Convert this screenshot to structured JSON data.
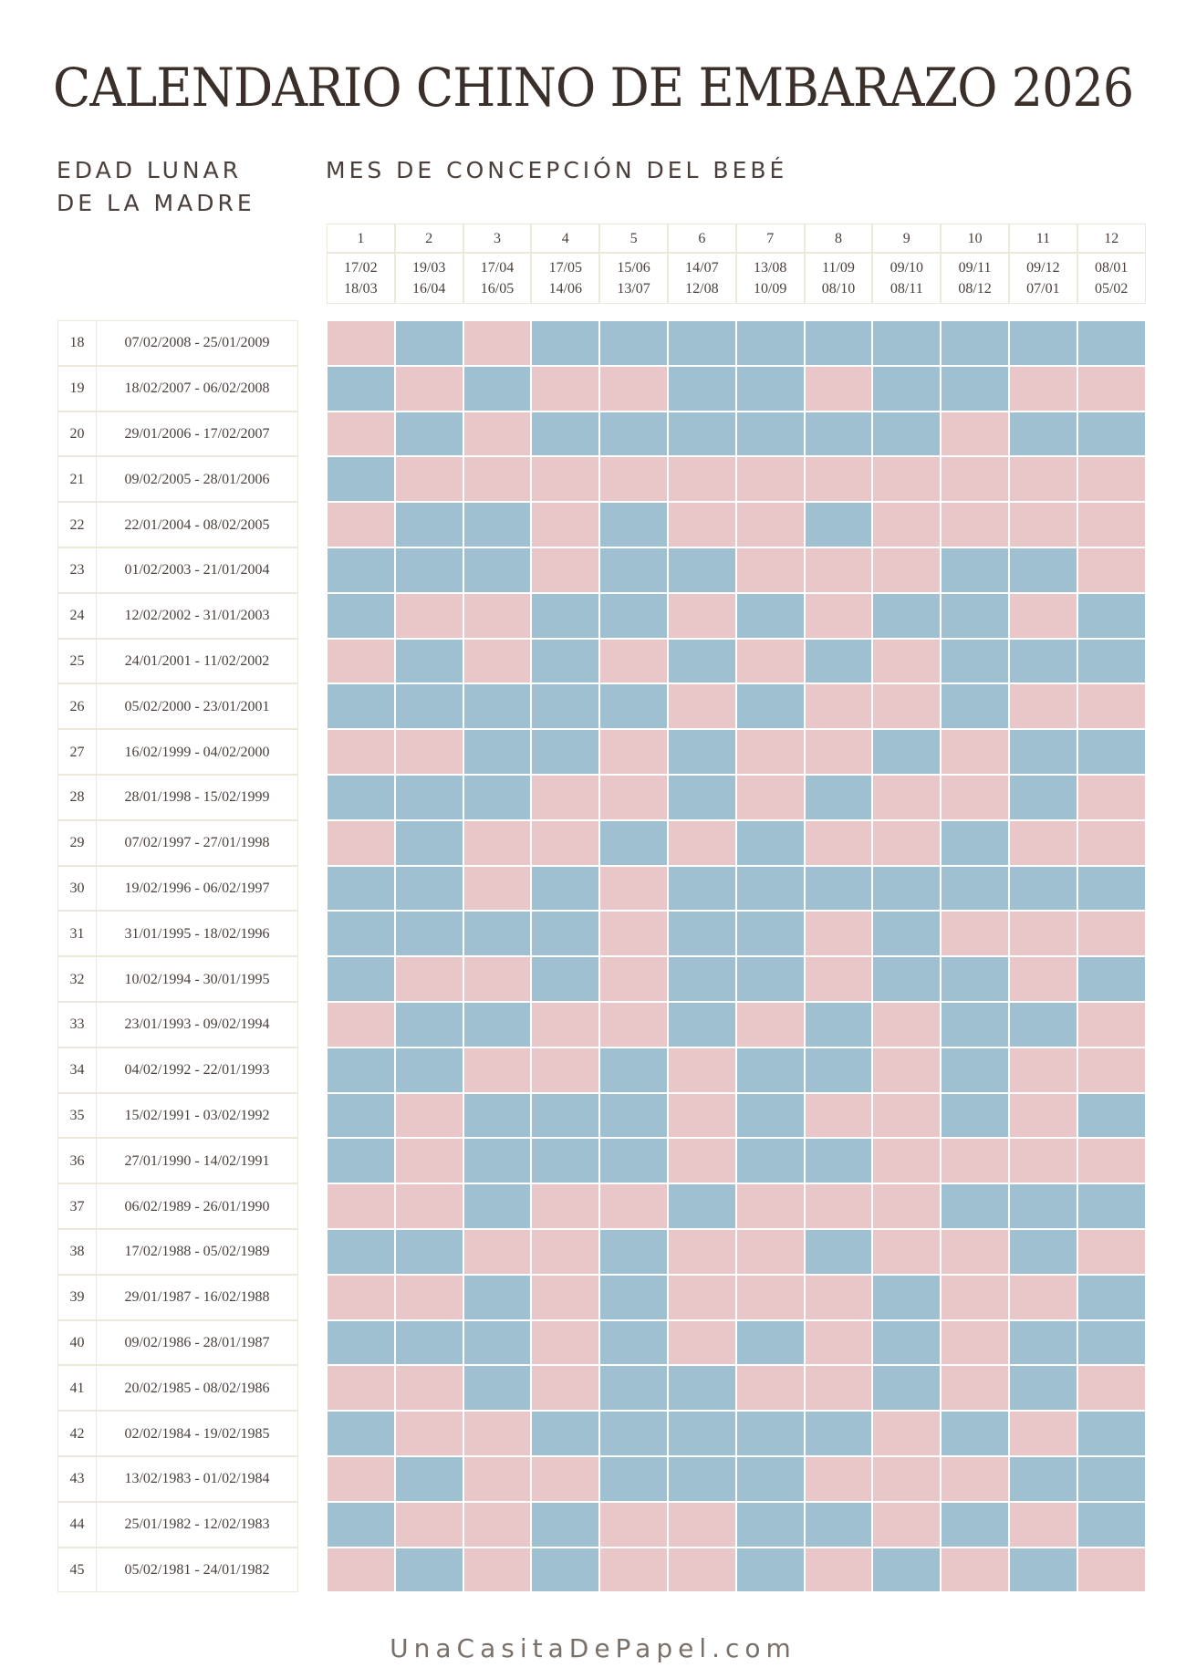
{
  "title": "CALENDARIO CHINO DE EMBARAZO 2026",
  "left_header": [
    "EDAD LUNAR",
    "DE LA MADRE"
  ],
  "column_header": "MES DE CONCEPCIÓN DEL BEBÉ",
  "palette": {
    "P": "#e9c6c8",
    "B": "#9fc0d0"
  },
  "months": [
    {
      "number": "1",
      "start": "17/02",
      "end": "18/03"
    },
    {
      "number": "2",
      "start": "19/03",
      "end": "16/04"
    },
    {
      "number": "3",
      "start": "17/04",
      "end": "16/05"
    },
    {
      "number": "4",
      "start": "17/05",
      "end": "14/06"
    },
    {
      "number": "5",
      "start": "15/06",
      "end": "13/07"
    },
    {
      "number": "6",
      "start": "14/07",
      "end": "12/08"
    },
    {
      "number": "7",
      "start": "13/08",
      "end": "10/09"
    },
    {
      "number": "8",
      "start": "11/09",
      "end": "08/10"
    },
    {
      "number": "9",
      "start": "09/10",
      "end": "08/11"
    },
    {
      "number": "10",
      "start": "09/11",
      "end": "08/12"
    },
    {
      "number": "11",
      "start": "09/12",
      "end": "07/01"
    },
    {
      "number": "12",
      "start": "08/01",
      "end": "05/02"
    }
  ],
  "rows": [
    {
      "age": "18",
      "range": "07/02/2008 - 25/01/2009",
      "cells": "PBPBBBBBBBBB"
    },
    {
      "age": "19",
      "range": "18/02/2007 - 06/02/2008",
      "cells": "BPBPPBBPBBPP"
    },
    {
      "age": "20",
      "range": "29/01/2006 - 17/02/2007",
      "cells": "PBPBBBBBBPBB"
    },
    {
      "age": "21",
      "range": "09/02/2005 - 28/01/2006",
      "cells": "BPPPPPPPPPPP"
    },
    {
      "age": "22",
      "range": "22/01/2004 - 08/02/2005",
      "cells": "PBBPBPPBPPPP"
    },
    {
      "age": "23",
      "range": "01/02/2003 - 21/01/2004",
      "cells": "BBBPBBPPPBBP"
    },
    {
      "age": "24",
      "range": "12/02/2002 - 31/01/2003",
      "cells": "BPPBBPBPBBPB"
    },
    {
      "age": "25",
      "range": "24/01/2001 - 11/02/2002",
      "cells": "PBPBPBPBPBBB"
    },
    {
      "age": "26",
      "range": "05/02/2000 - 23/01/2001",
      "cells": "BBBBBPBPPBPP"
    },
    {
      "age": "27",
      "range": "16/02/1999 - 04/02/2000",
      "cells": "PPBBPBPPBPBB"
    },
    {
      "age": "28",
      "range": "28/01/1998 - 15/02/1999",
      "cells": "BBBPPBPBPPBP"
    },
    {
      "age": "29",
      "range": "07/02/1997 - 27/01/1998",
      "cells": "PBPPBPBPPBPP"
    },
    {
      "age": "30",
      "range": "19/02/1996 - 06/02/1997",
      "cells": "BBPBPBBBBBBB"
    },
    {
      "age": "31",
      "range": "31/01/1995 - 18/02/1996",
      "cells": "BBBBPBBPBPPP"
    },
    {
      "age": "32",
      "range": "10/02/1994 - 30/01/1995",
      "cells": "BPPBPBBPBBPB"
    },
    {
      "age": "33",
      "range": "23/01/1993 - 09/02/1994",
      "cells": "PBBPPBPBPBBP"
    },
    {
      "age": "34",
      "range": "04/02/1992 - 22/01/1993",
      "cells": "BBPPBPBBPBPP"
    },
    {
      "age": "35",
      "range": "15/02/1991 - 03/02/1992",
      "cells": "BPBBBPBPPBPB"
    },
    {
      "age": "36",
      "range": "27/01/1990 - 14/02/1991",
      "cells": "BPBBBPBBPPPP"
    },
    {
      "age": "37",
      "range": "06/02/1989 - 26/01/1990",
      "cells": "PPBPPBPPPBBB"
    },
    {
      "age": "38",
      "range": "17/02/1988 - 05/02/1989",
      "cells": "BBPPBPPBPPBP"
    },
    {
      "age": "39",
      "range": "29/01/1987 - 16/02/1988",
      "cells": "PPBPBPPPBPPB"
    },
    {
      "age": "40",
      "range": "09/02/1986 - 28/01/1987",
      "cells": "BBBPBPBPBPBB"
    },
    {
      "age": "41",
      "range": "20/02/1985 - 08/02/1986",
      "cells": "PPBPBBPPBPBP"
    },
    {
      "age": "42",
      "range": "02/02/1984 - 19/02/1985",
      "cells": "BPPBBBBBPBPB"
    },
    {
      "age": "43",
      "range": "13/02/1983 - 01/02/1984",
      "cells": "PBPPBBBPPPBB"
    },
    {
      "age": "44",
      "range": "25/01/1982 - 12/02/1983",
      "cells": "BPPBPPBBPBPB"
    },
    {
      "age": "45",
      "range": "05/02/1981 - 24/01/1982",
      "cells": "PBPBPPBPBPBP"
    }
  ],
  "footer": "UnaCasitaDePapel.com"
}
